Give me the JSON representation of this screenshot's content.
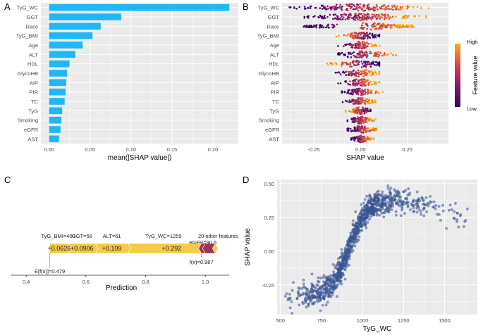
{
  "colors": {
    "bar": "#1FB8F5",
    "panel_bg": "#EBEBEB",
    "grid": "#FFFFFF",
    "pos_force": "#F5CB48",
    "neg_force": "#A0305E",
    "dep_point": "#3D5A9A",
    "low": "#2D0A5C",
    "mid": "#C0306B",
    "high": "#FCAE12"
  },
  "chart_data": [
    {
      "panel": "A",
      "type": "bar",
      "orientation": "horizontal",
      "xlabel": "mean(|SHAP value|)",
      "categories": [
        "TyG_WC",
        "GGT",
        "Race",
        "TyG_BMI",
        "Age",
        "ALT",
        "HDL",
        "GlycoHB",
        "AIP",
        "PIR",
        "TC",
        "TyG",
        "Smoking",
        "eGFR",
        "AST"
      ],
      "values": [
        0.22,
        0.088,
        0.063,
        0.053,
        0.041,
        0.032,
        0.025,
        0.022,
        0.021,
        0.02,
        0.019,
        0.016,
        0.015,
        0.014,
        0.012
      ],
      "xlim": [
        -0.01,
        0.231
      ],
      "xticks": [
        0.0,
        0.05,
        0.1,
        0.15,
        0.2
      ],
      "xtick_labels": [
        "0.00",
        "0.05",
        "0.10",
        "0.15",
        "0.20"
      ]
    },
    {
      "panel": "B",
      "type": "scatter",
      "subtype": "beeswarm",
      "xlabel": "SHAP value",
      "features": [
        "TyG_WC",
        "GGT",
        "Race",
        "TyG_BMI",
        "Age",
        "ALT",
        "HDL",
        "GlycoHB",
        "AIP",
        "PIR",
        "TC",
        "TyG",
        "Smoking",
        "eGFR",
        "AST"
      ],
      "ranges": [
        [
          -0.38,
          0.43
        ],
        [
          -0.3,
          0.35
        ],
        [
          -0.31,
          0.32
        ],
        [
          -0.14,
          0.1
        ],
        [
          -0.12,
          0.12
        ],
        [
          -0.12,
          0.2
        ],
        [
          -0.2,
          0.1
        ],
        [
          -0.15,
          0.1
        ],
        [
          -0.12,
          0.1
        ],
        [
          -0.1,
          0.12
        ],
        [
          -0.1,
          0.08
        ],
        [
          -0.08,
          0.08
        ],
        [
          -0.07,
          0.08
        ],
        [
          -0.07,
          0.1
        ],
        [
          -0.05,
          0.07
        ]
      ],
      "xlim": [
        -0.42,
        0.47
      ],
      "xticks": [
        -0.25,
        0.0,
        0.25
      ],
      "xtick_labels": [
        "-0.25",
        "0.00",
        "0.25"
      ],
      "legend": {
        "title": "Feature value",
        "high": "High",
        "low": "Low",
        "position": "right"
      }
    },
    {
      "panel": "C",
      "type": "force",
      "xlabel": "Prediction",
      "base_value": 0.479,
      "base_label": "E[f(x)]=0.479",
      "output_value": 0.987,
      "output_label": "f(x)=0.987",
      "segments": [
        {
          "feature": "TyG_BMI=400",
          "value": "+0.0626",
          "start": 0.479,
          "end": 0.5416,
          "sign": "pos"
        },
        {
          "feature": "GGT=56",
          "value": "+0.0906",
          "start": 0.5416,
          "end": 0.6322,
          "sign": "pos"
        },
        {
          "feature": "ALT=61",
          "value": "+0.109",
          "start": 0.6322,
          "end": 0.7412,
          "sign": "pos"
        },
        {
          "feature": "TyG_WC=1259",
          "value": "+0.292",
          "start": 0.7412,
          "end": 1.0332,
          "sign": "pos"
        },
        {
          "feature": "eGFR=90.5",
          "value": "",
          "start": 1.0332,
          "end": 1.0,
          "sign": "neg"
        },
        {
          "feature": "20 other features",
          "value": "",
          "start": 1.0,
          "end": 0.987,
          "sign": "neg"
        }
      ],
      "xlim": [
        0.35,
        1.08
      ],
      "xticks": [
        0.4,
        0.6,
        0.8,
        1.0
      ],
      "xtick_labels": [
        "0.4",
        "0.6",
        "0.8",
        "1.0"
      ]
    },
    {
      "panel": "D",
      "type": "scatter",
      "xlabel": "TyG_WC",
      "ylabel": "SHAP value",
      "xlim": [
        480,
        1700
      ],
      "ylim": [
        -0.47,
        0.53
      ],
      "xticks": [
        500,
        750,
        1000,
        1250,
        1500
      ],
      "xtick_labels": [
        "500",
        "750",
        "1000",
        "1250",
        "1500"
      ],
      "yticks": [
        -0.25,
        0.0,
        0.25,
        0.5
      ],
      "ytick_labels": [
        "-0.25",
        "0.00",
        "0.25",
        "0.50"
      ],
      "n_points": 1100,
      "trend": {
        "low": -0.33,
        "high": 0.38,
        "midpoint": 920,
        "scale": 55
      }
    }
  ],
  "labels": {
    "A": "A",
    "B": "B",
    "C": "C",
    "D": "D"
  }
}
